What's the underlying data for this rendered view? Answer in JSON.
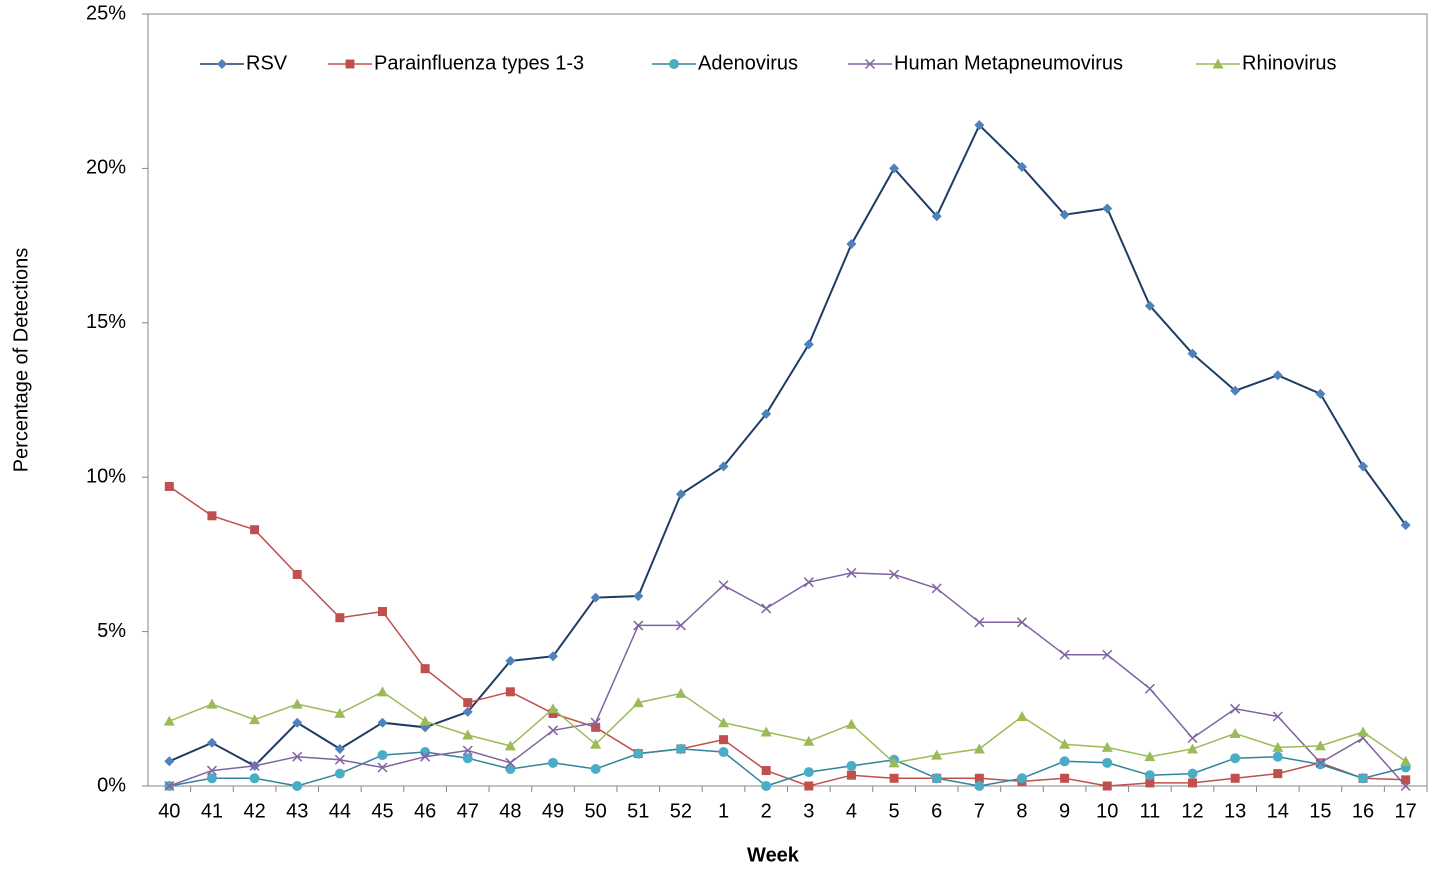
{
  "chart_data": {
    "type": "line",
    "x_label": "Week",
    "y_label": "Percentage of Detections",
    "categories": [
      "40",
      "41",
      "42",
      "43",
      "44",
      "45",
      "46",
      "47",
      "48",
      "49",
      "50",
      "51",
      "52",
      "1",
      "2",
      "3",
      "4",
      "5",
      "6",
      "7",
      "8",
      "9",
      "10",
      "11",
      "12",
      "13",
      "14",
      "15",
      "16",
      "17"
    ],
    "series": [
      {
        "name": "RSV",
        "color": "#1f3d63",
        "marker": "diamond",
        "values": [
          0.8,
          1.4,
          0.65,
          2.05,
          1.2,
          2.05,
          1.9,
          2.4,
          4.05,
          4.2,
          6.1,
          6.15,
          9.45,
          10.35,
          12.05,
          14.3,
          17.55,
          20.0,
          18.45,
          21.4,
          20.05,
          18.5,
          18.7,
          15.55,
          14.0,
          12.8,
          13.3,
          12.7,
          10.35,
          8.45
        ]
      },
      {
        "name": "Parainfluenza types 1-3",
        "color": "#c0504d",
        "marker": "square",
        "values": [
          9.7,
          8.75,
          8.3,
          6.85,
          5.45,
          5.65,
          3.8,
          2.7,
          3.05,
          2.35,
          1.9,
          1.05,
          1.2,
          1.5,
          0.5,
          0,
          0.35,
          0.25,
          0.25,
          0.25,
          0.15,
          0.25,
          0,
          0.1,
          0.1,
          0.25,
          0.4,
          0.75,
          0.25,
          0.2
        ]
      },
      {
        "name": "Adenovirus",
        "color": "#31849b",
        "marker": "circle",
        "values": [
          0,
          0.25,
          0.25,
          0,
          0.4,
          1.0,
          1.1,
          0.9,
          0.55,
          0.75,
          0.55,
          1.05,
          1.2,
          1.1,
          0,
          0.45,
          0.65,
          0.85,
          0.25,
          0,
          0.25,
          0.8,
          0.75,
          0.35,
          0.4,
          0.9,
          0.95,
          0.7,
          0.25,
          0.6
        ]
      },
      {
        "name": "Human Metapneumovirus",
        "color": "#8064a2",
        "marker": "x",
        "values": [
          0,
          0.5,
          0.65,
          0.95,
          0.85,
          0.6,
          0.95,
          1.15,
          0.75,
          1.8,
          2.05,
          5.2,
          5.2,
          6.5,
          5.75,
          6.6,
          6.9,
          6.85,
          6.4,
          5.3,
          5.3,
          4.25,
          4.25,
          3.15,
          1.55,
          2.5,
          2.25,
          0.75,
          1.55,
          0
        ]
      },
      {
        "name": "Rhinovirus",
        "color": "#9bbb59",
        "marker": "triangle",
        "values": [
          2.1,
          2.65,
          2.15,
          2.65,
          2.35,
          3.05,
          2.1,
          1.65,
          1.3,
          2.5,
          1.35,
          2.7,
          3.0,
          2.05,
          1.75,
          1.45,
          2.0,
          0.75,
          1.0,
          1.2,
          2.25,
          1.35,
          1.25,
          0.95,
          1.2,
          1.7,
          1.25,
          1.3,
          1.75,
          0.8
        ]
      }
    ],
    "ylim": [
      0,
      25
    ],
    "yticks": [
      {
        "value": 0,
        "label": "0%"
      },
      {
        "value": 5,
        "label": "5%"
      },
      {
        "value": 10,
        "label": "10%"
      },
      {
        "value": 15,
        "label": "15%"
      },
      {
        "value": 20,
        "label": "20%"
      },
      {
        "value": 25,
        "label": "25%"
      }
    ],
    "legend": "top",
    "grid": false
  }
}
